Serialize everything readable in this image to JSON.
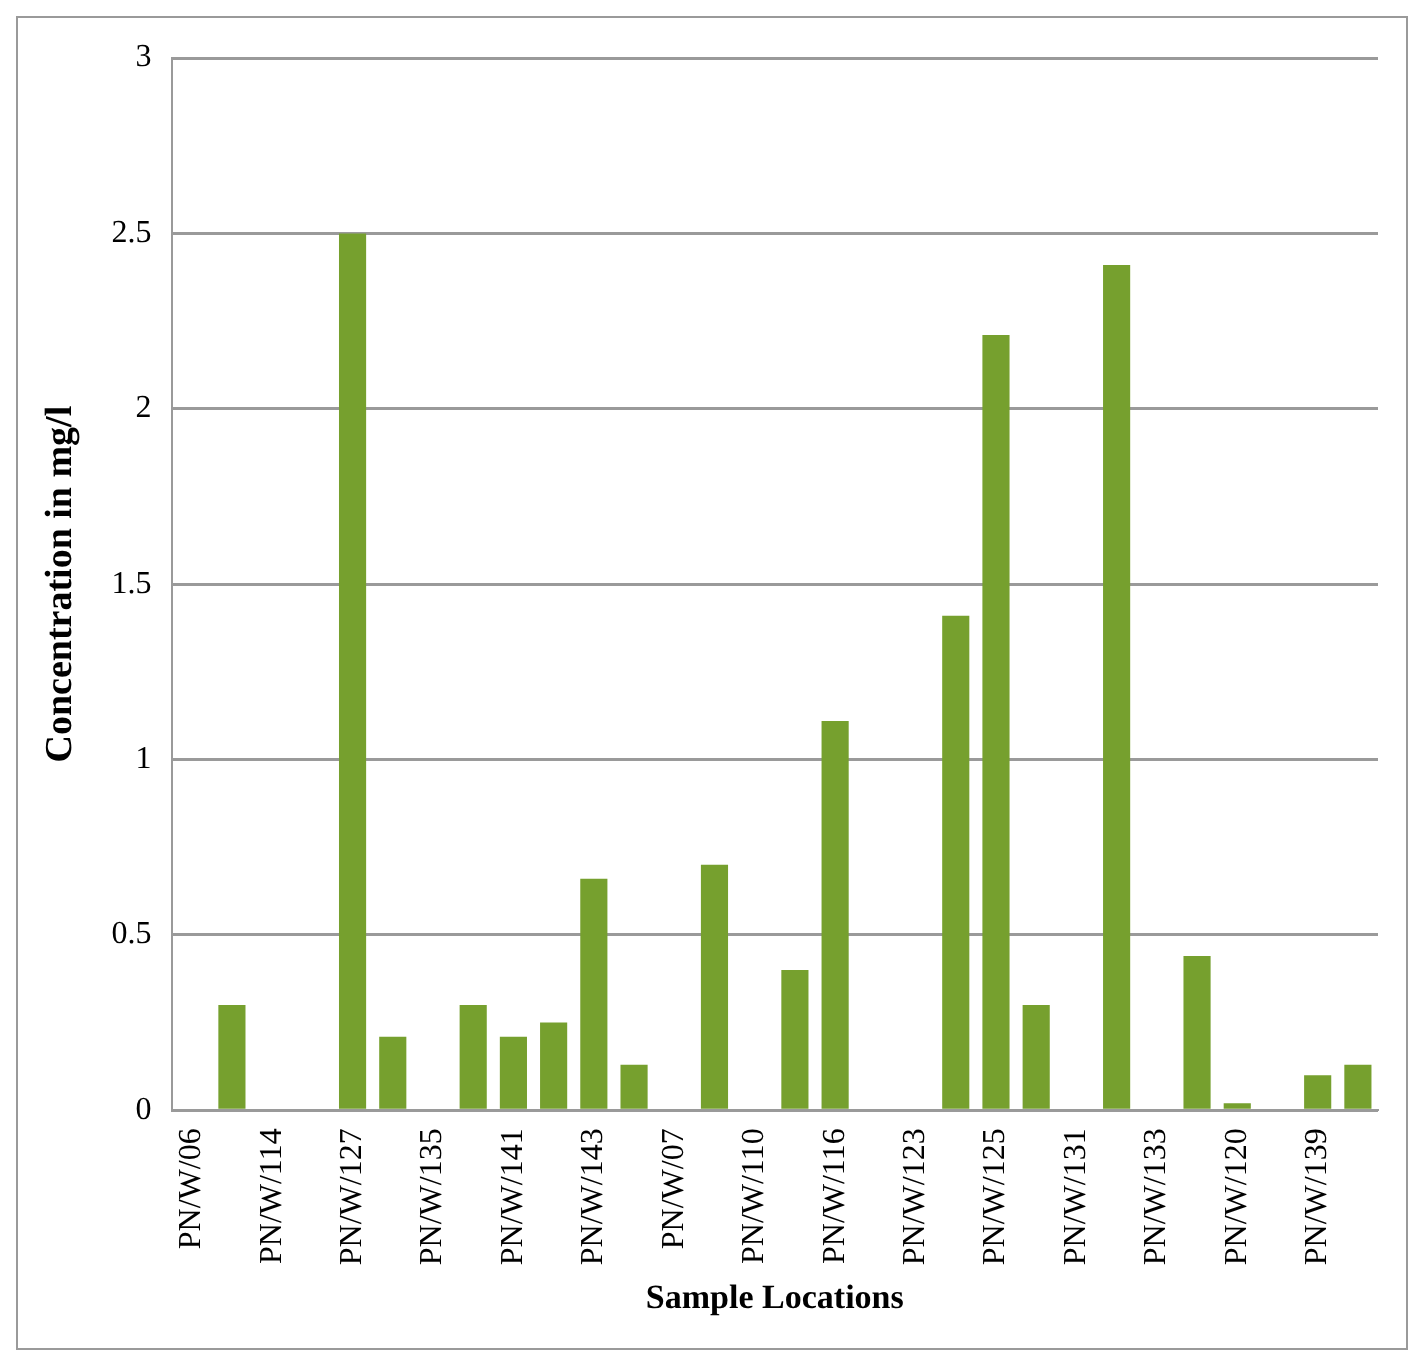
{
  "chart_data": {
    "type": "bar",
    "xlabel": "Sample Locations",
    "ylabel": "Concentration in mg/l",
    "categories": [
      "PN/W/06",
      null,
      "PN/W/114",
      null,
      "PN/W/127",
      null,
      "PN/W/135",
      null,
      "PN/W/141",
      null,
      "PN/W/143",
      null,
      "PN/W/07",
      null,
      "PN/W/110",
      null,
      "PN/W/116",
      null,
      "PN/W/123",
      null,
      "PN/W/125",
      null,
      "PN/W/131",
      null,
      "PN/W/133",
      null,
      "PN/W/120",
      null,
      "PN/W/139",
      null
    ],
    "values": [
      null,
      0.3,
      null,
      null,
      2.5,
      0.21,
      null,
      0.3,
      0.21,
      0.25,
      0.66,
      0.13,
      null,
      0.7,
      null,
      0.4,
      1.11,
      null,
      null,
      1.41,
      2.21,
      0.3,
      null,
      2.41,
      null,
      0.44,
      0.02,
      null,
      0.1,
      0.13
    ],
    "color": "#76a02e",
    "ylim": [
      0,
      3
    ],
    "yticks": [
      0,
      0.5,
      1,
      1.5,
      2,
      2.5,
      3
    ],
    "grid": "y",
    "legend": false
  }
}
